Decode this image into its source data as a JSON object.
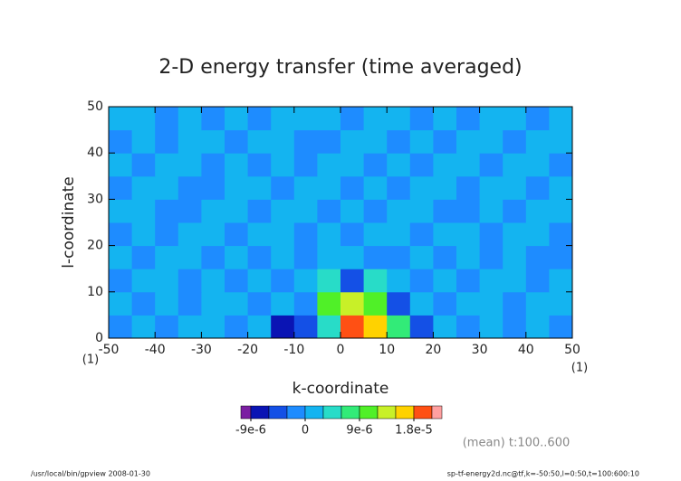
{
  "chart_data": {
    "type": "contour",
    "title": "2-D energy transfer (time averaged)",
    "xlabel": "k-coordinate",
    "ylabel": "l-coordinate",
    "x_units": "(1)",
    "xlim": [
      -50,
      50
    ],
    "ylim": [
      0,
      50
    ],
    "xticks": [
      -50,
      -40,
      -30,
      -20,
      -10,
      0,
      10,
      20,
      30,
      40,
      50
    ],
    "yticks": [
      0,
      10,
      20,
      30,
      40,
      50
    ],
    "annotation": "(mean) t:100..600",
    "footer_left": "/usr/local/bin/gpview   2008-01-30",
    "footer_right": "sp-tf-energy2d.nc@tf,k=-50:50,l=0:50,t=100:600:10",
    "colorbar": {
      "levels": [
        -9e-06,
        -6e-06,
        -3e-06,
        0,
        3e-06,
        6e-06,
        9e-06,
        1.2e-05,
        1.5e-05,
        1.8e-05,
        2.1e-05
      ],
      "colors": [
        "#7b1fa2",
        "#0a14b4",
        "#1450e6",
        "#1e8cff",
        "#14b4f0",
        "#28dcc8",
        "#32eb78",
        "#50f028",
        "#c8f028",
        "#ffd200",
        "#ff5014",
        "#ffa0a0"
      ],
      "ticks": [
        {
          "value": -9e-06,
          "label": "-9e-6"
        },
        0,
        {
          "value": 9e-06,
          "label": "9e-6"
        },
        {
          "value": 1.8e-05,
          "label": "1.8e-5"
        }
      ]
    },
    "field": {
      "k_edges": [
        -50,
        -45,
        -40,
        -35,
        -30,
        -25,
        -20,
        -15,
        -10,
        -5,
        0,
        5,
        10,
        15,
        20,
        25,
        30,
        35,
        40,
        45,
        50
      ],
      "l_edges": [
        0,
        5,
        10,
        15,
        20,
        25,
        30,
        35,
        40,
        45,
        50
      ],
      "values": [
        [
          -1e-06,
          2e-06,
          -1e-06,
          2e-06,
          2e-06,
          -1e-06,
          2e-06,
          -7e-06,
          -4e-06,
          4e-06,
          1.9e-05,
          1.6e-05,
          7e-06,
          -4e-06,
          2e-06,
          -1e-06,
          2e-06,
          -1e-06,
          2e-06,
          -1e-06
        ],
        [
          2e-06,
          -1e-06,
          2e-06,
          -1e-06,
          2e-06,
          2e-06,
          -1e-06,
          2e-06,
          -2e-06,
          1e-05,
          1.3e-05,
          1e-05,
          -4e-06,
          2e-06,
          -1e-06,
          2e-06,
          2e-06,
          -1e-06,
          2e-06,
          2e-06
        ],
        [
          -1e-06,
          2e-06,
          2e-06,
          -1e-06,
          2e-06,
          -1e-06,
          2e-06,
          -1e-06,
          2e-06,
          4e-06,
          -4e-06,
          5e-06,
          2e-06,
          -1e-06,
          2e-06,
          -1e-06,
          2e-06,
          2e-06,
          -1e-06,
          2e-06
        ],
        [
          2e-06,
          -1e-06,
          2e-06,
          2e-06,
          -1e-06,
          2e-06,
          -1e-06,
          2e-06,
          -1e-06,
          2e-06,
          2e-06,
          -1e-06,
          -1e-06,
          2e-06,
          -1e-06,
          2e-06,
          -1e-06,
          2e-06,
          -1e-06,
          -1e-06
        ],
        [
          -1e-06,
          2e-06,
          -1e-06,
          2e-06,
          2e-06,
          -1e-06,
          2e-06,
          2e-06,
          -1e-06,
          2e-06,
          -1e-06,
          2e-06,
          2e-06,
          -1e-06,
          2e-06,
          2e-06,
          -1e-06,
          2e-06,
          2e-06,
          -1e-06
        ],
        [
          2e-06,
          2e-06,
          -1e-06,
          -1e-06,
          2e-06,
          2e-06,
          -1e-06,
          2e-06,
          2e-06,
          -1e-06,
          2e-06,
          -1e-06,
          2e-06,
          2e-06,
          -1e-06,
          -1e-06,
          2e-06,
          -1e-06,
          2e-06,
          2e-06
        ],
        [
          -1e-06,
          2e-06,
          2e-06,
          -1e-06,
          -1e-06,
          2e-06,
          2e-06,
          -1e-06,
          2e-06,
          2e-06,
          -1e-06,
          2e-06,
          -1e-06,
          2e-06,
          2e-06,
          -1e-06,
          2e-06,
          2e-06,
          -1e-06,
          2e-06
        ],
        [
          2e-06,
          -1e-06,
          2e-06,
          2e-06,
          -1e-06,
          2e-06,
          -1e-06,
          2e-06,
          -1e-06,
          2e-06,
          2e-06,
          -1e-06,
          2e-06,
          -1e-06,
          2e-06,
          2e-06,
          -1e-06,
          2e-06,
          2e-06,
          -1e-06
        ],
        [
          -1e-06,
          2e-06,
          -1e-06,
          2e-06,
          2e-06,
          -1e-06,
          2e-06,
          2e-06,
          -1e-06,
          -1e-06,
          2e-06,
          2e-06,
          -1e-06,
          2e-06,
          -1e-06,
          2e-06,
          2e-06,
          -1e-06,
          2e-06,
          2e-06
        ],
        [
          2e-06,
          2e-06,
          -1e-06,
          2e-06,
          -1e-06,
          2e-06,
          -1e-06,
          2e-06,
          2e-06,
          2e-06,
          -1e-06,
          2e-06,
          2e-06,
          -1e-06,
          2e-06,
          -1e-06,
          2e-06,
          2e-06,
          -1e-06,
          2e-06
        ]
      ]
    }
  }
}
